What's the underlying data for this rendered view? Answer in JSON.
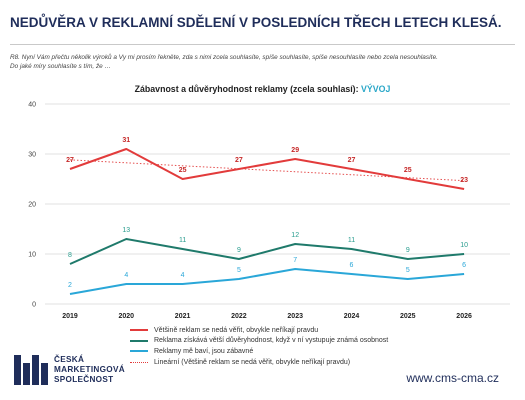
{
  "slide": {
    "title": "NEDŮVĚRA V REKLAMNÍ SDĚLENÍ V POSLEDNÍCH TŘECH LETECH KLESÁ.",
    "question_line1": "R8. Nyní Vám přečtu několik výroků a Vy mi prosím řekněte, zda s nimi zcela souhlasíte, spíše souhlasíte, spíše nesouhlasíte nebo zcela nesouhlasíte.",
    "question_line2": "Do jaké míry souhlasíte s tím, že …",
    "logo_lines": [
      "ČESKÁ",
      "MARKETINGOVÁ",
      "SPOLEČNOST"
    ],
    "url": "www.cms-cma.cz"
  },
  "chart_data": {
    "type": "line",
    "title": "Zábavnost a důvěryhodnost reklamy (zcela souhlasí):",
    "title_accent": "VÝVOJ",
    "categories": [
      "2019",
      "2020",
      "2021",
      "2022",
      "2023",
      "2024",
      "2025",
      "2026"
    ],
    "ylim": [
      0,
      40
    ],
    "yticks": [
      0,
      10,
      20,
      30,
      40
    ],
    "grid": true,
    "legend_position": "bottom",
    "series": [
      {
        "name": "Většině reklam se nedá věřit, obvykle neříkají pravdu",
        "color": "#e23b3b",
        "label_color": "#c62828",
        "values": [
          27,
          31,
          25,
          27,
          29,
          27,
          25,
          23
        ]
      },
      {
        "name": "Reklama získává větší důvěryhodnost, když v ní vystupuje známá osobnost",
        "color": "#1f7a6b",
        "label_color": "#2a9d8f",
        "values": [
          8,
          13,
          11,
          9,
          12,
          11,
          9,
          10
        ]
      },
      {
        "name": "Reklamy mě baví, jsou zábavné",
        "color": "#2aa7d8",
        "label_color": "#2aa7d8",
        "values": [
          2,
          4,
          4,
          5,
          7,
          6,
          5,
          6
        ]
      }
    ],
    "trendline_label": "Lineární (Většině reklam se nedá věřit, obvykle neříkají pravdu)",
    "trendline_color": "#e23b3b"
  }
}
